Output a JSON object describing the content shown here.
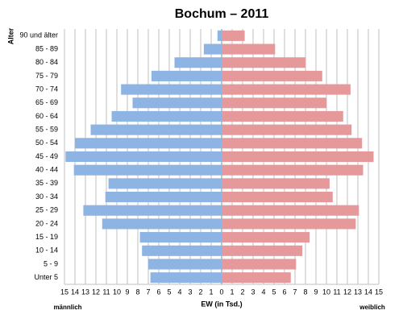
{
  "chart_data": {
    "type": "population-pyramid",
    "title": "Bochum – 2011",
    "y_axis_label": "Alter",
    "x_axis_label": "EW (in Tsd.)",
    "categories": [
      "90 und älter",
      "85 - 89",
      "80 - 84",
      "75 - 79",
      "70 - 74",
      "65 - 69",
      "60 - 64",
      "55 - 59",
      "50 - 54",
      "45 - 49",
      "40 - 44",
      "35 - 39",
      "30 - 34",
      "25 - 29",
      "20 - 24",
      "15 - 19",
      "10 - 14",
      "5 - 9",
      "Unter 5"
    ],
    "series": [
      {
        "name": "männlich",
        "color": "#8db4e2",
        "values": [
          0.4,
          1.7,
          4.5,
          6.7,
          9.6,
          8.5,
          10.5,
          12.5,
          14.0,
          14.9,
          14.1,
          10.8,
          11.1,
          13.2,
          11.4,
          7.8,
          7.6,
          7.0,
          6.8
        ]
      },
      {
        "name": "weiblich",
        "color": "#e6999b",
        "values": [
          2.2,
          5.1,
          8.0,
          9.6,
          12.3,
          10.0,
          11.6,
          12.4,
          13.4,
          14.5,
          13.5,
          10.3,
          10.6,
          13.1,
          12.8,
          8.4,
          7.7,
          7.1,
          6.6
        ]
      }
    ],
    "xlim": [
      0,
      15
    ],
    "xticks": [
      0,
      1,
      2,
      3,
      4,
      5,
      6,
      7,
      8,
      9,
      10,
      11,
      12,
      13,
      14,
      15
    ],
    "grid": true
  }
}
